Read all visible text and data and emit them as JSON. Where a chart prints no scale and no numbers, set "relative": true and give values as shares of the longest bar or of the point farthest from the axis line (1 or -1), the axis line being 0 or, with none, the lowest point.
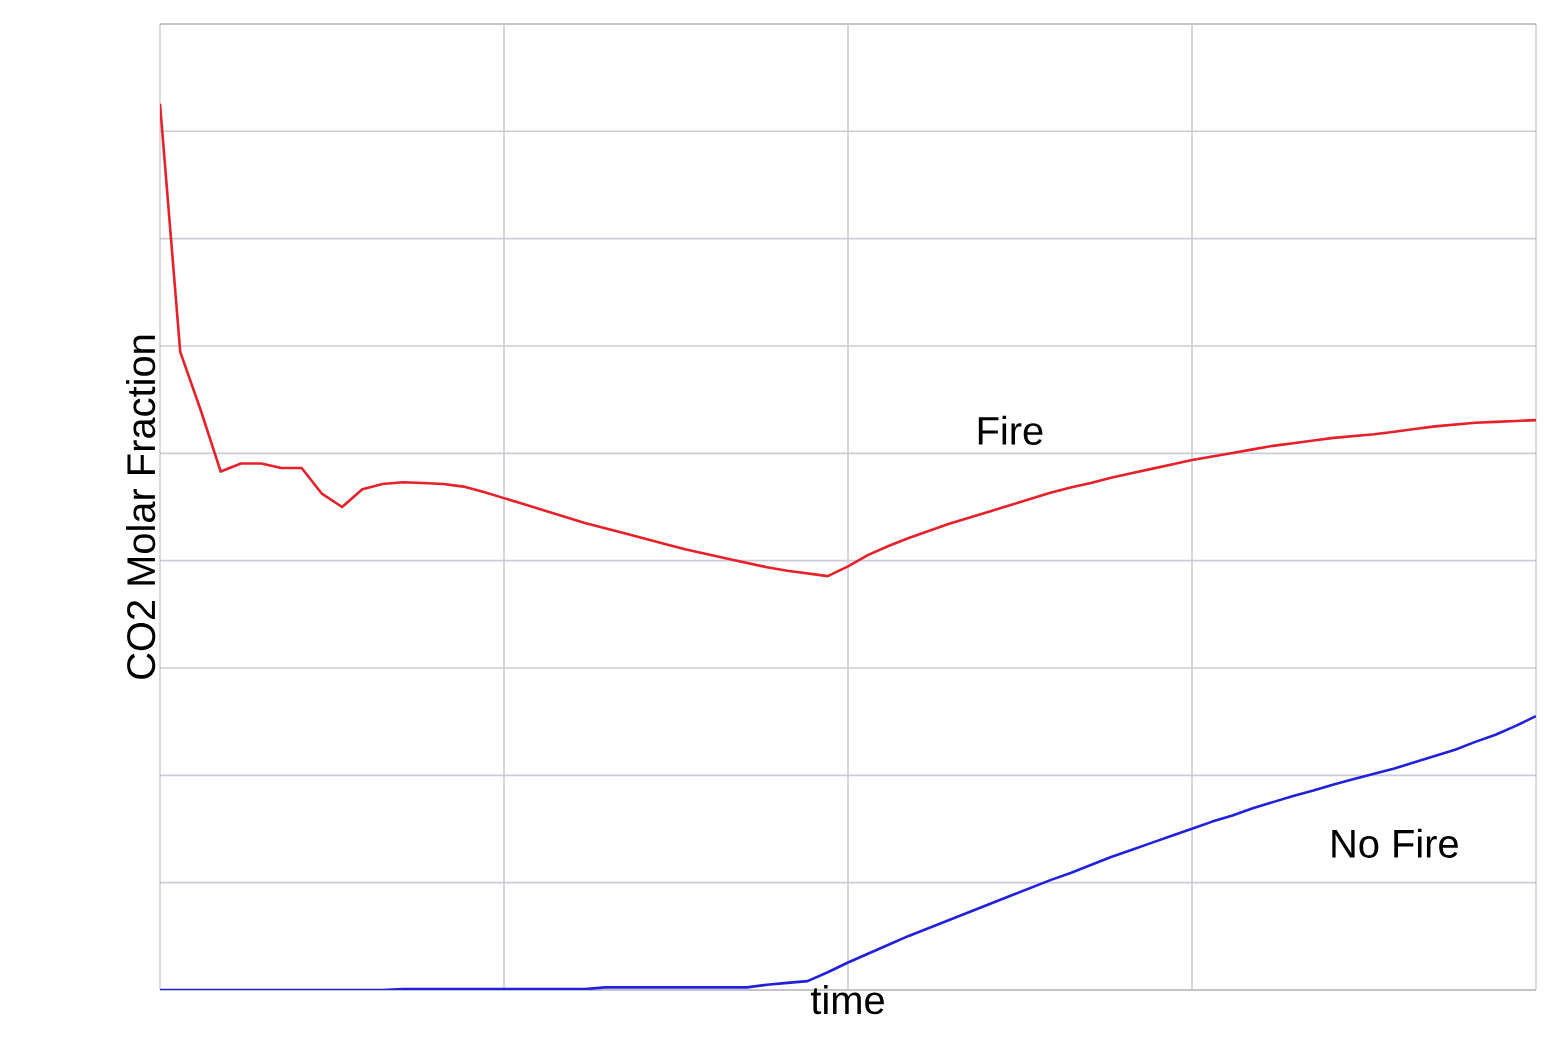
{
  "chart_data": {
    "type": "line",
    "relative": true,
    "xlabel": "time",
    "ylabel": "CO2 Molar Fraction",
    "categories": [
      null,
      null,
      null,
      null,
      null,
      null,
      null,
      null,
      null,
      null,
      null,
      null,
      null,
      null,
      null,
      null,
      null,
      null,
      null,
      null,
      null,
      null,
      null,
      null,
      null,
      null,
      null,
      null,
      null,
      null,
      null,
      null,
      null,
      null,
      null,
      null,
      null,
      null,
      null,
      null,
      null,
      null,
      null,
      null,
      null,
      null,
      null,
      null,
      null,
      null,
      null,
      null,
      null,
      null,
      null,
      null,
      null,
      null,
      null,
      null,
      null,
      null,
      null,
      null,
      null,
      null,
      null,
      null,
      null
    ],
    "grid": true,
    "legend": false,
    "marker": "none",
    "line_style": "solid",
    "series": [
      {
        "name": "Fire",
        "color": "#e8202a",
        "values": [
          1.0,
          0.72,
          0.655,
          0.585,
          0.594,
          0.594,
          0.589,
          0.589,
          0.56,
          0.545,
          0.565,
          0.571,
          0.573,
          0.572,
          0.571,
          0.568,
          0.562,
          0.555,
          0.548,
          0.541,
          0.534,
          0.527,
          0.521,
          0.515,
          0.509,
          0.503,
          0.497,
          0.492,
          0.487,
          0.482,
          0.477,
          0.473,
          0.47,
          0.467,
          0.478,
          0.491,
          0.501,
          0.51,
          0.518,
          0.526,
          0.533,
          0.54,
          0.547,
          0.554,
          0.561,
          0.567,
          0.572,
          0.578,
          0.583,
          0.588,
          0.593,
          0.598,
          0.602,
          0.606,
          0.61,
          0.614,
          0.617,
          0.62,
          0.623,
          0.625,
          0.627,
          0.63,
          0.633,
          0.636,
          0.638,
          0.64,
          0.641,
          0.642,
          0.643
        ]
      },
      {
        "name": "No Fire",
        "color": "#2020e0",
        "values": [
          0,
          0,
          0,
          0,
          0,
          0,
          0,
          0,
          0,
          0,
          0,
          0,
          0.001,
          0.001,
          0.001,
          0.001,
          0.001,
          0.001,
          0.001,
          0.001,
          0.001,
          0.001,
          0.003,
          0.003,
          0.003,
          0.003,
          0.003,
          0.003,
          0.003,
          0.003,
          0.006,
          0.008,
          0.01,
          0.02,
          0.031,
          0.041,
          0.051,
          0.061,
          0.07,
          0.079,
          0.088,
          0.097,
          0.106,
          0.115,
          0.124,
          0.132,
          0.141,
          0.15,
          0.158,
          0.166,
          0.174,
          0.182,
          0.19,
          0.197,
          0.205,
          0.212,
          0.219,
          0.225,
          0.232,
          0.238,
          0.244,
          0.25,
          0.257,
          0.264,
          0.271,
          0.28,
          0.288,
          0.298,
          0.309
        ]
      }
    ]
  }
}
